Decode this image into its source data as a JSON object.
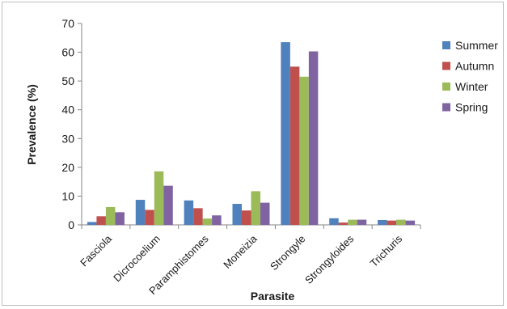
{
  "chart_data": {
    "type": "bar",
    "title": "",
    "xlabel": "Parasite",
    "ylabel": "Prevalence (%)",
    "ylim": [
      0,
      70
    ],
    "yticks": [
      0,
      10,
      20,
      30,
      40,
      50,
      60,
      70
    ],
    "grid": false,
    "legend_position": "right",
    "categories": [
      "Fasciola",
      "Dicrocoelium",
      "Paramphistomes",
      "Moneizia",
      "Strongyle",
      "Strongyloides",
      "Trichuris"
    ],
    "series": [
      {
        "name": "Summer",
        "color": "#4f81bd",
        "values": [
          1.0,
          8.7,
          8.5,
          7.3,
          63.5,
          2.3,
          1.7
        ]
      },
      {
        "name": "Autumn",
        "color": "#c0504d",
        "values": [
          3.0,
          5.2,
          5.8,
          5.0,
          55.0,
          0.8,
          1.5
        ]
      },
      {
        "name": "Winter",
        "color": "#9bbb59",
        "values": [
          6.2,
          18.6,
          2.2,
          11.7,
          51.5,
          1.8,
          1.8
        ]
      },
      {
        "name": "Spring",
        "color": "#8064a2",
        "values": [
          4.4,
          13.6,
          3.3,
          7.7,
          60.3,
          1.8,
          1.5
        ]
      }
    ]
  }
}
